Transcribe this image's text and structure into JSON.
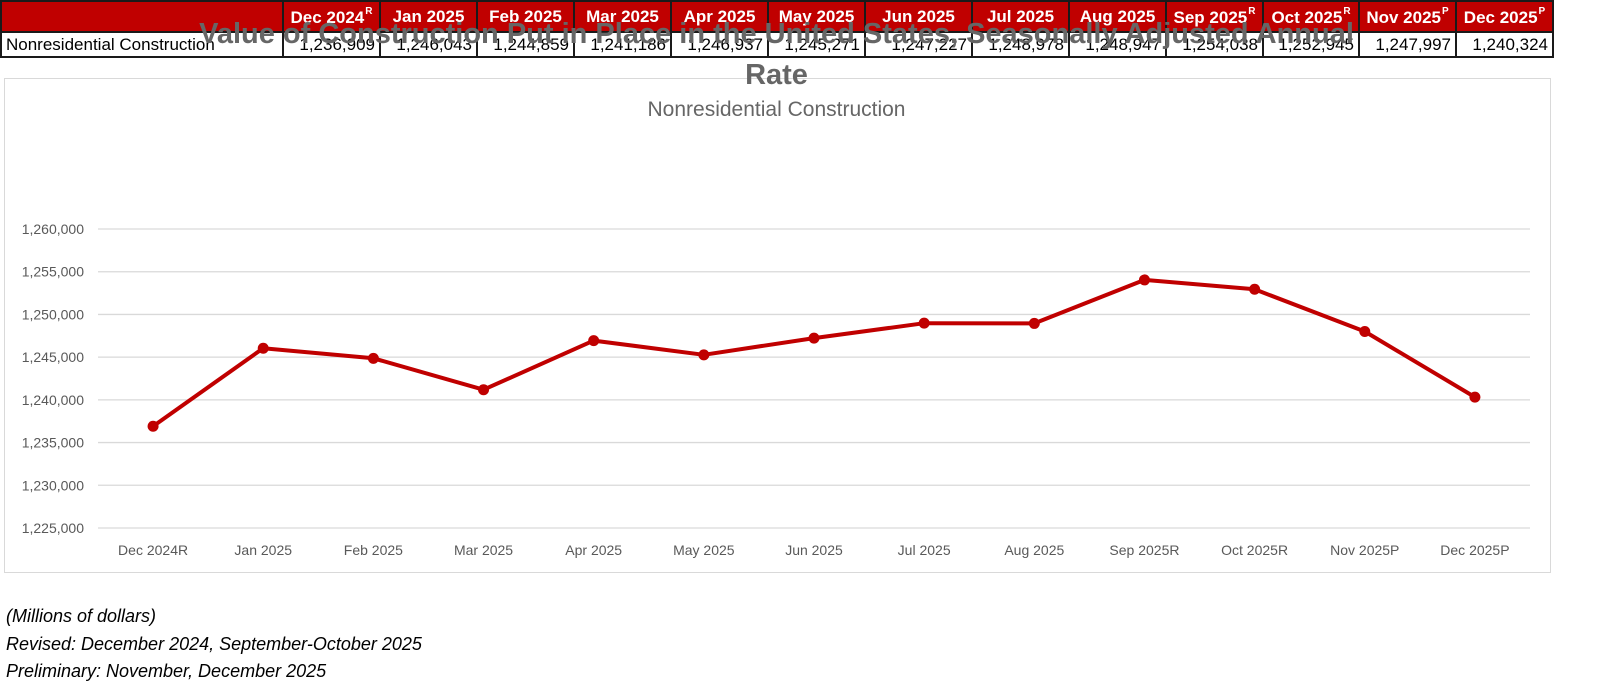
{
  "table": {
    "columns": [
      {
        "label": "Dec 2024",
        "sup": "R"
      },
      {
        "label": "Jan 2025",
        "sup": ""
      },
      {
        "label": "Feb 2025",
        "sup": ""
      },
      {
        "label": "Mar 2025",
        "sup": ""
      },
      {
        "label": "Apr 2025",
        "sup": ""
      },
      {
        "label": "May 2025",
        "sup": ""
      },
      {
        "label": "Jun 2025",
        "sup": ""
      },
      {
        "label": "Jul 2025",
        "sup": ""
      },
      {
        "label": "Aug 2025",
        "sup": ""
      },
      {
        "label": "Sep 2025",
        "sup": "R"
      },
      {
        "label": "Oct 2025",
        "sup": "R"
      },
      {
        "label": "Nov 2025",
        "sup": "P"
      },
      {
        "label": "Dec 2025",
        "sup": "P"
      }
    ],
    "rows": [
      {
        "label": "Nonresidential Construction",
        "values": [
          "1,236,909",
          "1,246,043",
          "1,244,859",
          "1,241,186",
          "1,246,937",
          "1,245,271",
          "1,247,227",
          "1,248,978",
          "1,248,947",
          "1,254,038",
          "1,252,945",
          "1,247,997",
          "1,240,324"
        ]
      }
    ]
  },
  "chart_data": {
    "type": "line",
    "title": "Value of Construction Put in Place in the United States, Seasonally Adjusted Annual Rate",
    "subtitle": "Nonresidential Construction",
    "xlabel": "",
    "ylabel": "",
    "categories": [
      "Dec 2024R",
      "Jan 2025",
      "Feb 2025",
      "Mar 2025",
      "Apr 2025",
      "May 2025",
      "Jun 2025",
      "Jul 2025",
      "Aug 2025",
      "Sep 2025R",
      "Oct 2025R",
      "Nov 2025P",
      "Dec 2025P"
    ],
    "series": [
      {
        "name": "Nonresidential Construction",
        "color": "#c00000",
        "values": [
          1236909,
          1246043,
          1244859,
          1241186,
          1246937,
          1245271,
          1247227,
          1248978,
          1248947,
          1254038,
          1252945,
          1247997,
          1240324
        ]
      }
    ],
    "ylim": [
      1225000,
      1260000
    ],
    "yticks": [
      1225000,
      1230000,
      1235000,
      1240000,
      1245000,
      1250000,
      1255000,
      1260000
    ],
    "ytick_labels": [
      "1,225,000",
      "1,230,000",
      "1,235,000",
      "1,240,000",
      "1,245,000",
      "1,250,000",
      "1,255,000",
      "1,260,000"
    ],
    "grid": true,
    "legend": "none",
    "markers": true
  },
  "colors": {
    "header_bg": "#c00000",
    "header_text": "#ffffff",
    "line": "#c00000",
    "title_text": "#666666",
    "axis_text": "#595959",
    "gridline": "#d9d9d9"
  },
  "notes": [
    "(Millions of dollars)",
    "Revised: December 2024, September-October 2025",
    "Preliminary: November, December 2025"
  ]
}
